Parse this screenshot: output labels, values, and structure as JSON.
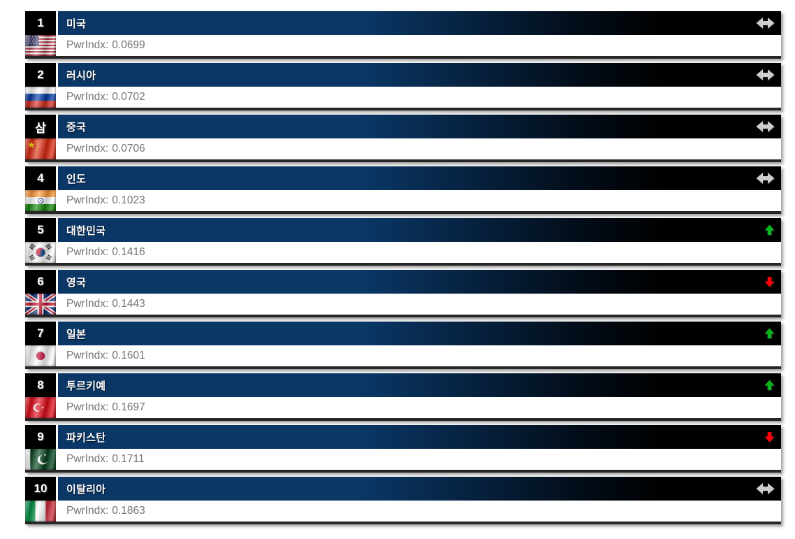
{
  "labels": {
    "pwrindx": "PwrIndx:"
  },
  "colors": {
    "header_navy": "#0a3766",
    "header_black": "#000000",
    "rank_bg": "#000000",
    "bottom_border": "#262626",
    "pwr_text": "#757575",
    "trend_same": "#cdcdcd",
    "trend_up": "#0bb41f",
    "trend_down": "#fb0006"
  },
  "rows": [
    {
      "rank": "1",
      "country": "미국",
      "pwrindx_value": "0.0699",
      "trend": "same",
      "flag": "us"
    },
    {
      "rank": "2",
      "country": "러시아",
      "pwrindx_value": "0.0702",
      "trend": "same",
      "flag": "ru"
    },
    {
      "rank": "삼",
      "country": "중국",
      "pwrindx_value": "0.0706",
      "trend": "same",
      "flag": "cn"
    },
    {
      "rank": "4",
      "country": "인도",
      "pwrindx_value": "0.1023",
      "trend": "same",
      "flag": "in"
    },
    {
      "rank": "5",
      "country": "대한민국",
      "pwrindx_value": "0.1416",
      "trend": "up",
      "flag": "kr"
    },
    {
      "rank": "6",
      "country": "영국",
      "pwrindx_value": "0.1443",
      "trend": "down",
      "flag": "gb"
    },
    {
      "rank": "7",
      "country": "일본",
      "pwrindx_value": "0.1601",
      "trend": "up",
      "flag": "jp"
    },
    {
      "rank": "8",
      "country": "투르키예",
      "pwrindx_value": "0.1697",
      "trend": "up",
      "flag": "tr"
    },
    {
      "rank": "9",
      "country": "파키스탄",
      "pwrindx_value": "0.1711",
      "trend": "down",
      "flag": "pk"
    },
    {
      "rank": "10",
      "country": "이탈리아",
      "pwrindx_value": "0.1863",
      "trend": "same",
      "flag": "it"
    }
  ]
}
